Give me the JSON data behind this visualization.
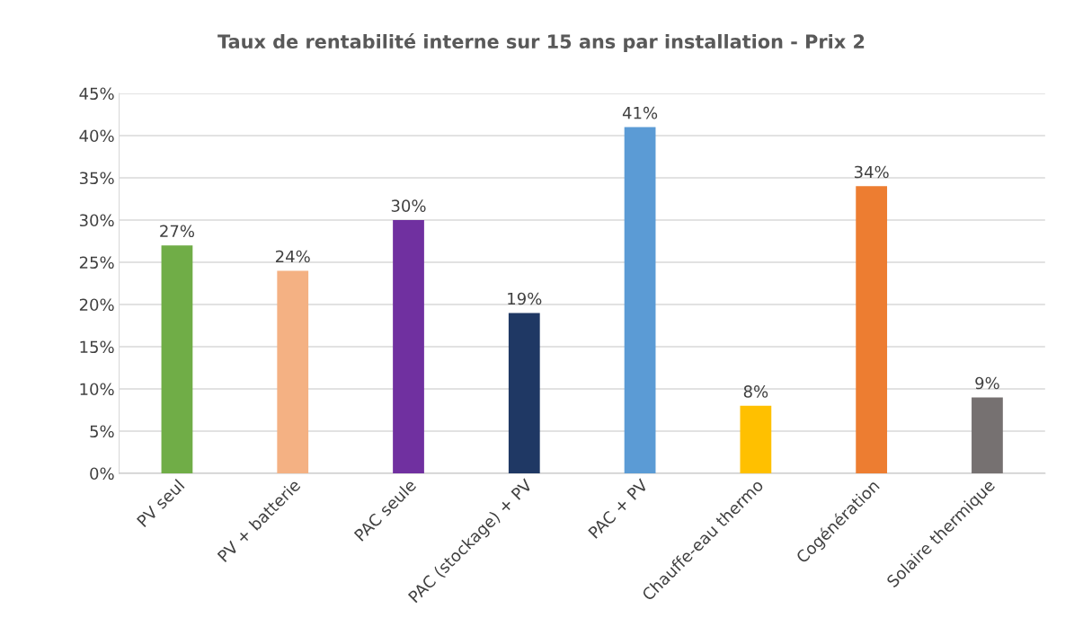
{
  "chart_data": {
    "type": "bar",
    "title": "Taux de rentabilité interne sur 15 ans par installation - Prix 2",
    "categories": [
      "PV seul",
      "PV + batterie",
      "PAC seule",
      "PAC (stockage) + PV",
      "PAC + PV",
      "Chauffe-eau thermo",
      "Cogénération",
      "Solaire thermique"
    ],
    "values": [
      27,
      24,
      30,
      19,
      41,
      8,
      34,
      9
    ],
    "colors": [
      "#70ad47",
      "#f4b183",
      "#7030a0",
      "#1f3864",
      "#5b9bd5",
      "#ffc000",
      "#ed7d31",
      "#767171"
    ],
    "value_labels": [
      "27%",
      "24%",
      "30%",
      "19%",
      "41%",
      "8%",
      "34%",
      "9%"
    ],
    "ylim": [
      0,
      45
    ],
    "yticks": [
      {
        "value": 0,
        "label": "0%"
      },
      {
        "value": 5,
        "label": "5%"
      },
      {
        "value": 10,
        "label": "10%"
      },
      {
        "value": 15,
        "label": "15%"
      },
      {
        "value": 20,
        "label": "20%"
      },
      {
        "value": 25,
        "label": "25%"
      },
      {
        "value": 30,
        "label": "30%"
      },
      {
        "value": 35,
        "label": "35%"
      },
      {
        "value": 40,
        "label": "40%"
      },
      {
        "value": 45,
        "label": "45%"
      }
    ],
    "grid": "y",
    "legend": false
  }
}
